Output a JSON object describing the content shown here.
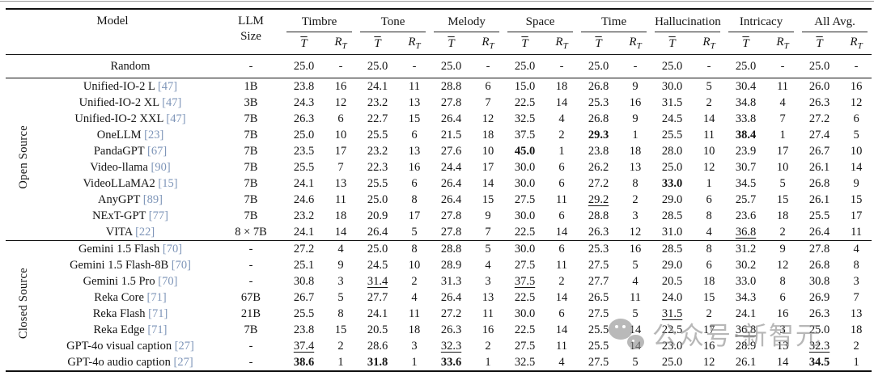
{
  "header": {
    "model": "Model",
    "size_line1": "LLM",
    "size_line2": "Size",
    "groups": [
      "Timbre",
      "Tone",
      "Melody",
      "Space",
      "Time",
      "Hallucination",
      "Intricacy",
      "All Avg."
    ],
    "mean_symbol": "T",
    "rank_base": "R",
    "rank_sub": "T"
  },
  "sections": [
    {
      "label": "",
      "rows": [
        {
          "model": "Random",
          "cite": "",
          "size": "-",
          "vals": [
            "25.0",
            "-",
            "25.0",
            "-",
            "25.0",
            "-",
            "25.0",
            "-",
            "25.0",
            "-",
            "25.0",
            "-",
            "25.0",
            "-",
            "25.0",
            "-"
          ],
          "bold": [],
          "under": []
        }
      ]
    },
    {
      "label": "Open Source",
      "rows": [
        {
          "model": "Unified-IO-2 L",
          "cite": "[47]",
          "size": "1B",
          "vals": [
            "23.8",
            "16",
            "24.1",
            "11",
            "28.8",
            "6",
            "15.0",
            "18",
            "26.8",
            "9",
            "30.0",
            "5",
            "30.4",
            "11",
            "26.0",
            "16"
          ],
          "bold": [],
          "under": []
        },
        {
          "model": "Unified-IO-2 XL",
          "cite": "[47]",
          "size": "3B",
          "vals": [
            "24.3",
            "12",
            "23.2",
            "13",
            "27.8",
            "7",
            "22.5",
            "14",
            "25.3",
            "16",
            "31.5",
            "2",
            "34.8",
            "4",
            "26.3",
            "12"
          ],
          "bold": [],
          "under": []
        },
        {
          "model": "Unified-IO-2 XXL",
          "cite": "[47]",
          "size": "7B",
          "vals": [
            "26.3",
            "6",
            "22.7",
            "15",
            "26.4",
            "12",
            "32.5",
            "4",
            "26.8",
            "9",
            "24.5",
            "14",
            "33.8",
            "7",
            "27.2",
            "6"
          ],
          "bold": [],
          "under": []
        },
        {
          "model": "OneLLM",
          "cite": "[23]",
          "size": "7B",
          "vals": [
            "25.0",
            "10",
            "25.5",
            "6",
            "21.5",
            "18",
            "37.5",
            "2",
            "29.3",
            "1",
            "25.5",
            "11",
            "38.4",
            "1",
            "27.4",
            "5"
          ],
          "bold": [
            8,
            12
          ],
          "under": []
        },
        {
          "model": "PandaGPT",
          "cite": "[67]",
          "size": "7B",
          "vals": [
            "23.5",
            "17",
            "23.2",
            "13",
            "27.6",
            "10",
            "45.0",
            "1",
            "23.8",
            "18",
            "28.0",
            "10",
            "23.9",
            "17",
            "26.7",
            "10"
          ],
          "bold": [
            6
          ],
          "under": []
        },
        {
          "model": "Video-llama",
          "cite": "[90]",
          "size": "7B",
          "vals": [
            "25.5",
            "7",
            "22.3",
            "16",
            "24.4",
            "17",
            "30.0",
            "6",
            "26.2",
            "13",
            "25.0",
            "12",
            "30.7",
            "10",
            "26.1",
            "14"
          ],
          "bold": [],
          "under": []
        },
        {
          "model": "VideoLLaMA2",
          "cite": "[15]",
          "size": "7B",
          "vals": [
            "24.1",
            "13",
            "25.5",
            "6",
            "26.4",
            "14",
            "30.0",
            "6",
            "27.2",
            "8",
            "33.0",
            "1",
            "34.5",
            "5",
            "26.8",
            "9"
          ],
          "bold": [
            10
          ],
          "under": []
        },
        {
          "model": "AnyGPT",
          "cite": "[89]",
          "size": "7B",
          "vals": [
            "24.6",
            "11",
            "25.0",
            "8",
            "26.4",
            "15",
            "27.5",
            "11",
            "29.2",
            "2",
            "29.0",
            "6",
            "25.7",
            "15",
            "26.1",
            "15"
          ],
          "bold": [],
          "under": [
            8
          ]
        },
        {
          "model": "NExT-GPT",
          "cite": "[77]",
          "size": "7B",
          "vals": [
            "23.2",
            "18",
            "20.9",
            "17",
            "27.8",
            "9",
            "30.0",
            "6",
            "28.8",
            "3",
            "28.5",
            "8",
            "23.6",
            "18",
            "25.5",
            "17"
          ],
          "bold": [],
          "under": []
        },
        {
          "model": "VITA",
          "cite": "[22]",
          "size": "8 × 7B",
          "vals": [
            "24.1",
            "14",
            "26.4",
            "5",
            "27.8",
            "7",
            "22.5",
            "14",
            "26.3",
            "12",
            "31.0",
            "4",
            "36.8",
            "2",
            "26.4",
            "11"
          ],
          "bold": [],
          "under": [
            12
          ]
        }
      ]
    },
    {
      "label": "Closed Source",
      "rows": [
        {
          "model": "Gemini 1.5 Flash",
          "cite": "[70]",
          "size": "-",
          "vals": [
            "27.2",
            "4",
            "25.0",
            "8",
            "28.8",
            "5",
            "30.0",
            "6",
            "25.3",
            "16",
            "28.5",
            "8",
            "31.2",
            "9",
            "27.8",
            "4"
          ],
          "bold": [],
          "under": []
        },
        {
          "model": "Gemini 1.5 Flash-8B",
          "cite": "[70]",
          "size": "-",
          "vals": [
            "25.1",
            "9",
            "24.5",
            "10",
            "28.9",
            "4",
            "27.5",
            "11",
            "27.5",
            "5",
            "29.0",
            "6",
            "30.2",
            "12",
            "26.8",
            "8"
          ],
          "bold": [],
          "under": []
        },
        {
          "model": "Gemini 1.5 Pro",
          "cite": "[70]",
          "size": "-",
          "vals": [
            "30.8",
            "3",
            "31.4",
            "2",
            "31.3",
            "3",
            "37.5",
            "2",
            "27.7",
            "4",
            "20.5",
            "18",
            "33.0",
            "8",
            "30.8",
            "3"
          ],
          "bold": [],
          "under": [
            2,
            6
          ]
        },
        {
          "model": "Reka Core",
          "cite": "[71]",
          "size": "67B",
          "vals": [
            "26.7",
            "5",
            "27.7",
            "4",
            "26.4",
            "13",
            "22.5",
            "14",
            "26.5",
            "11",
            "24.0",
            "15",
            "34.3",
            "6",
            "26.9",
            "7"
          ],
          "bold": [],
          "under": []
        },
        {
          "model": "Reka Flash",
          "cite": "[71]",
          "size": "21B",
          "vals": [
            "25.5",
            "8",
            "24.1",
            "11",
            "27.2",
            "11",
            "30.0",
            "6",
            "27.5",
            "5",
            "31.5",
            "2",
            "24.1",
            "16",
            "26.3",
            "13"
          ],
          "bold": [],
          "under": [
            10
          ]
        },
        {
          "model": "Reka Edge",
          "cite": "[71]",
          "size": "7B",
          "vals": [
            "23.8",
            "15",
            "20.5",
            "18",
            "26.3",
            "16",
            "22.5",
            "14",
            "25.5",
            "14",
            "22.5",
            "17",
            "36.8",
            "3",
            "25.0",
            "18"
          ],
          "bold": [],
          "under": [
            12
          ]
        },
        {
          "model": "GPT-4o visual caption",
          "cite": "[27]",
          "size": "-",
          "vals": [
            "37.4",
            "2",
            "28.6",
            "3",
            "32.3",
            "2",
            "27.5",
            "11",
            "25.5",
            "14",
            "23.0",
            "16",
            "28.9",
            "13",
            "32.3",
            "2"
          ],
          "bold": [],
          "under": [
            0,
            4,
            14
          ]
        },
        {
          "model": "GPT-4o audio caption",
          "cite": "[27]",
          "size": "-",
          "vals": [
            "38.6",
            "1",
            "31.8",
            "1",
            "33.6",
            "1",
            "32.5",
            "4",
            "27.5",
            "5",
            "25.0",
            "12",
            "26.1",
            "14",
            "34.5",
            "1"
          ],
          "bold": [
            0,
            2,
            4,
            14
          ],
          "under": []
        }
      ]
    }
  ],
  "watermark": {
    "text": "公众号·新智元"
  }
}
